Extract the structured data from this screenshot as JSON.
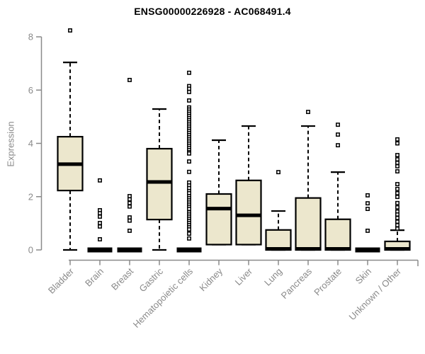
{
  "title": "ENSG00000226928 - AC068491.4",
  "colors": {
    "background": "#ffffff",
    "axis": "#8a8a8a",
    "tick_label": "#8a8a8a",
    "title_text": "#000000",
    "box_fill": "#ece7cd",
    "box_stroke": "#000000",
    "outlier_fill": "#ffffff"
  },
  "chart_data": {
    "type": "boxplot",
    "title": "ENSG00000226928 - AC068491.4",
    "xlabel": "",
    "ylabel": "Expression",
    "ylim": [
      0,
      8.3
    ],
    "yticks": [
      0,
      2,
      4,
      6,
      8
    ],
    "grid": false,
    "legend": "none",
    "categories": [
      "Bladder",
      "Brain",
      "Breast",
      "Gastric",
      "Hematopoietic cells",
      "Kidney",
      "Liver",
      "Lung",
      "Pancreas",
      "Prostate",
      "Skin",
      "Unknown / Other"
    ],
    "series": [
      {
        "name": "Bladder",
        "whisker_low": 0,
        "q1": 2.23,
        "median": 3.22,
        "q3": 4.25,
        "whisker_high": 7.04,
        "outliers": [
          8.24
        ]
      },
      {
        "name": "Brain",
        "whisker_low": 0,
        "q1": 0,
        "median": 0,
        "q3": 0,
        "whisker_high": 0,
        "outliers": [
          2.61,
          1.49,
          1.38,
          1.25,
          1.01,
          0.88,
          0.4
        ]
      },
      {
        "name": "Breast",
        "whisker_low": 0,
        "q1": 0,
        "median": 0,
        "q3": 0,
        "whisker_high": 0,
        "outliers": [
          6.38,
          2.02,
          1.9,
          1.76,
          1.63,
          1.22,
          1.1,
          0.72
        ]
      },
      {
        "name": "Gastric",
        "whisker_low": 0,
        "q1": 1.14,
        "median": 2.55,
        "q3": 3.8,
        "whisker_high": 5.29,
        "outliers": []
      },
      {
        "name": "Hematopoietic cells",
        "whisker_low": 0,
        "q1": 0,
        "median": 0,
        "q3": 0,
        "whisker_high": 0,
        "outliers": [
          6.65,
          6.15,
          6.05,
          5.93,
          5.61,
          5.35,
          5.27,
          5.19,
          5.11,
          5.03,
          4.95,
          4.87,
          4.79,
          4.71,
          4.63,
          4.55,
          4.47,
          4.39,
          4.31,
          4.23,
          4.15,
          4.07,
          3.99,
          3.91,
          3.83,
          3.75,
          3.67,
          3.62,
          3.32,
          2.93,
          2.53,
          2.42,
          2.32,
          2.21,
          2.13,
          2.02,
          1.94,
          1.86,
          1.78,
          1.7,
          1.62,
          1.54,
          1.41,
          1.33,
          1.25,
          1.17,
          1.09,
          1.01,
          0.93,
          0.85,
          0.77,
          0.61,
          0.43
        ]
      },
      {
        "name": "Kidney",
        "whisker_low": 0.2,
        "q1": 0.2,
        "median": 1.55,
        "q3": 2.1,
        "whisker_high": 4.12,
        "outliers": []
      },
      {
        "name": "Liver",
        "whisker_low": 0.2,
        "q1": 0.2,
        "median": 1.3,
        "q3": 2.61,
        "whisker_high": 4.65,
        "outliers": []
      },
      {
        "name": "Lung",
        "whisker_low": 0,
        "q1": 0,
        "median": 0.04,
        "q3": 0.75,
        "whisker_high": 1.46,
        "outliers": [
          2.92
        ]
      },
      {
        "name": "Pancreas",
        "whisker_low": 0,
        "q1": 0,
        "median": 0.04,
        "q3": 1.95,
        "whisker_high": 4.65,
        "outliers": [
          5.18
        ]
      },
      {
        "name": "Prostate",
        "whisker_low": 0,
        "q1": 0,
        "median": 0.04,
        "q3": 1.15,
        "whisker_high": 2.92,
        "outliers": [
          4.7,
          4.33,
          3.93
        ]
      },
      {
        "name": "Skin",
        "whisker_low": 0,
        "q1": 0,
        "median": 0,
        "q3": 0,
        "whisker_high": 0,
        "outliers": [
          2.05,
          1.75,
          1.54,
          0.72
        ]
      },
      {
        "name": "Unknown / Other",
        "whisker_low": 0,
        "q1": 0,
        "median": 0.04,
        "q3": 0.32,
        "whisker_high": 0.74,
        "outliers": [
          4.15,
          4.0,
          3.56,
          3.4,
          3.27,
          3.14,
          2.95,
          2.47,
          2.29,
          2.13,
          1.99,
          1.76,
          1.6,
          1.44,
          1.33,
          1.2,
          1.06,
          0.93,
          0.8
        ]
      }
    ]
  }
}
